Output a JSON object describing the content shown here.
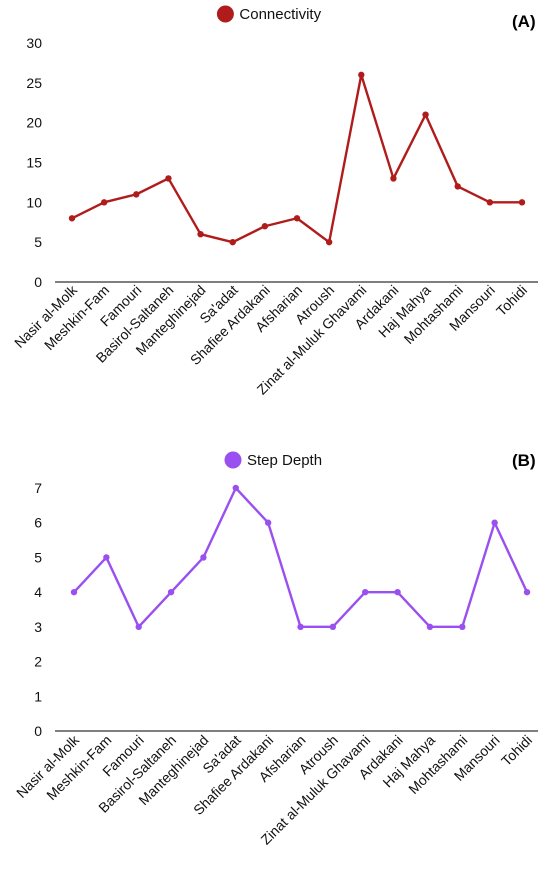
{
  "chart_data": [
    {
      "type": "line",
      "panel_label": "(A)",
      "categories": [
        "Nasir al-Molk",
        "Meshkin-Fam",
        "Famouri",
        "Basirol-Saltaneh",
        "Manteghinejad",
        "Sa'adat",
        "Shafiee Ardakani",
        "Afsharian",
        "Atroush",
        "Zinat al-Muluk Ghavami",
        "Ardakani",
        "Haj Mahya",
        "Mohtashami",
        "Mansouri",
        "Tohidi"
      ],
      "series": [
        {
          "name": "Connectivity",
          "values": [
            8,
            10,
            11,
            13,
            6,
            5,
            7,
            8,
            5,
            26,
            13,
            21,
            12,
            10,
            10
          ],
          "color": "#b01c1c"
        }
      ],
      "ylim": [
        0,
        30
      ],
      "yticks": [
        0,
        5,
        10,
        15,
        20,
        25,
        30
      ],
      "legend_position": "top-center",
      "grid": false
    },
    {
      "type": "line",
      "panel_label": "(B)",
      "categories": [
        "Nasir al-Molk",
        "Meshkin-Fam",
        "Famouri",
        "Basirol-Saltaneh",
        "Manteghinejad",
        "Sa'adat",
        "Shafiee Ardakani",
        "Afsharian",
        "Atroush",
        "Zinat al-Muluk Ghavami",
        "Ardakani",
        "Haj Mahya",
        "Mohtashami",
        "Mansouri",
        "Tohidi"
      ],
      "series": [
        {
          "name": "Step Depth",
          "values": [
            4,
            5,
            3,
            4,
            5,
            7,
            6,
            3,
            3,
            4,
            4,
            3,
            3,
            6,
            4
          ],
          "color": "#9a4ff0"
        }
      ],
      "ylim": [
        0,
        7
      ],
      "yticks": [
        0,
        1,
        2,
        3,
        4,
        5,
        6,
        7
      ],
      "legend_position": "top-center",
      "grid": false
    }
  ]
}
